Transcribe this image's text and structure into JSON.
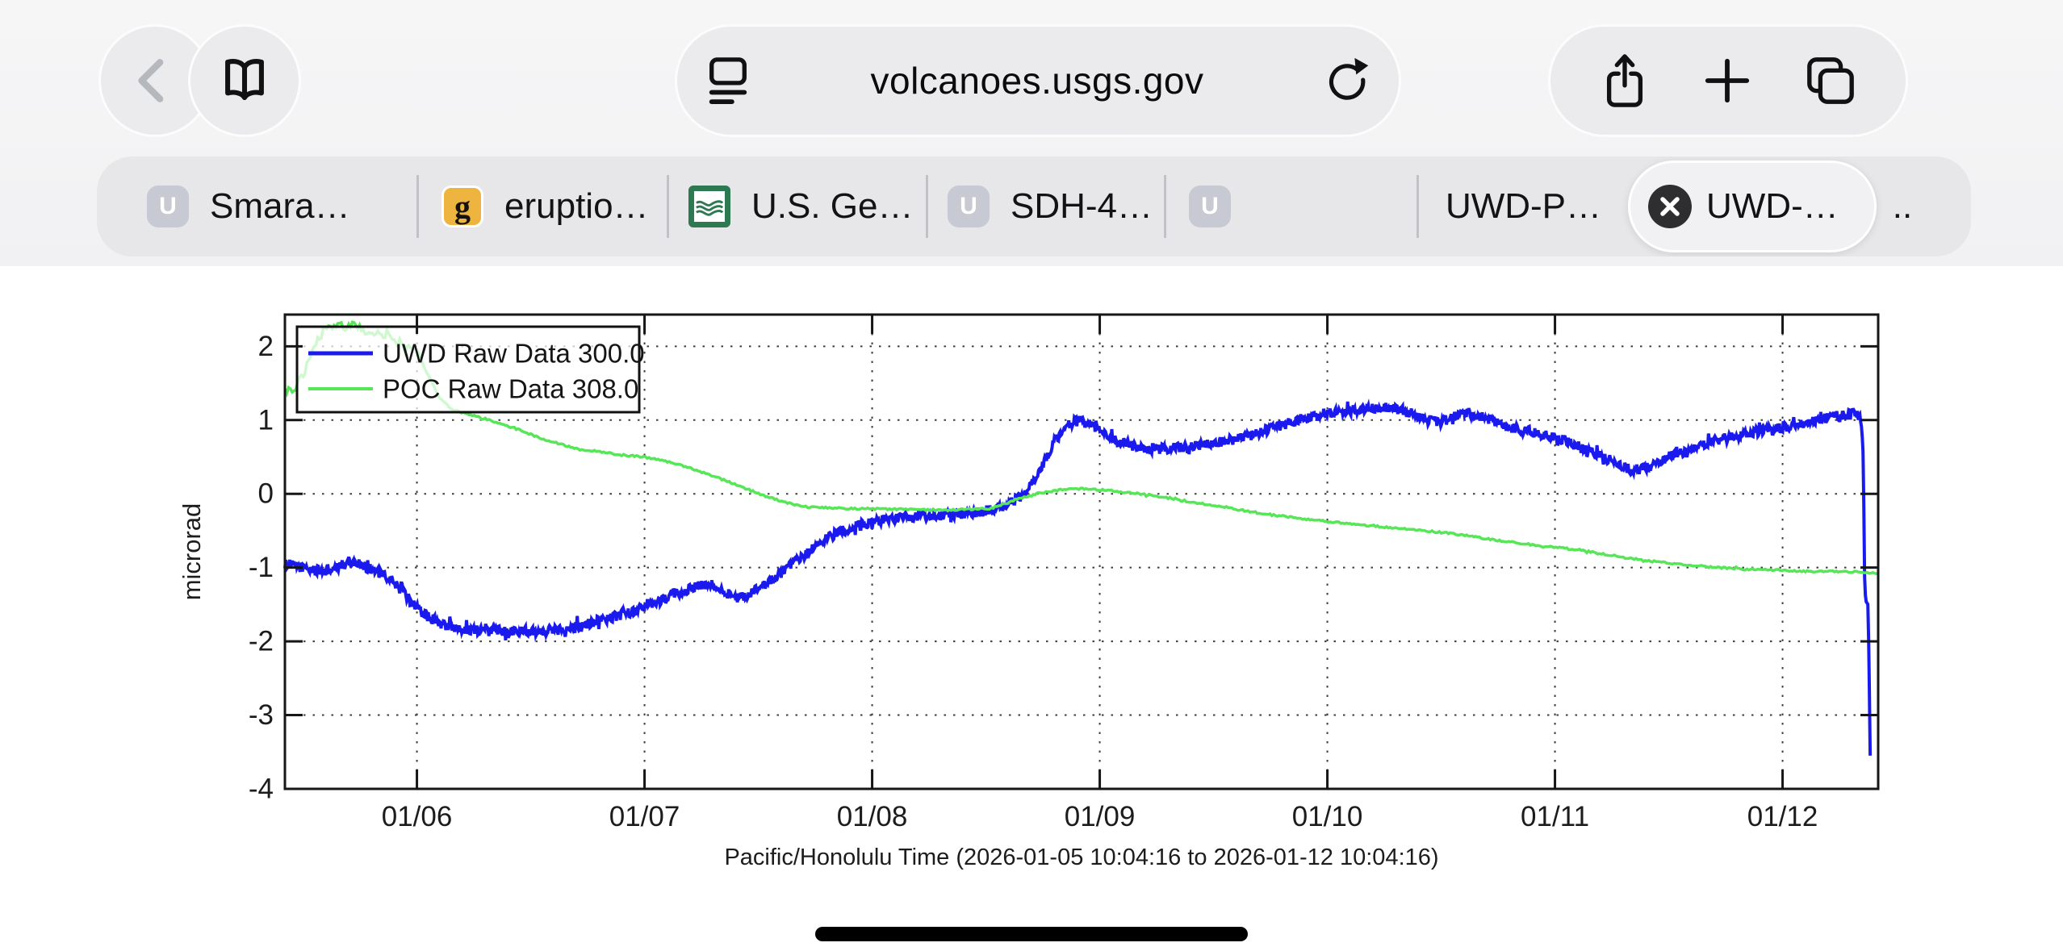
{
  "browser": {
    "url": "volcanoes.usgs.gov",
    "tabs": [
      {
        "label": "Smara…",
        "favicon_text": "U"
      },
      {
        "label": "eruptio…",
        "favicon_text": "g"
      },
      {
        "label": "U.S. Ge…",
        "favicon_text": ""
      },
      {
        "label": "SDH-4…",
        "favicon_text": "U"
      },
      {
        "label": "",
        "favicon_text": "U"
      },
      {
        "label": "UWD-P…",
        "favicon_text": ""
      },
      {
        "label": "UWD-…",
        "favicon_text": "",
        "active": true,
        "closable": true
      },
      {
        "label": "..",
        "favicon_text": ""
      }
    ]
  },
  "chart_data": {
    "type": "line",
    "title": "",
    "xlabel": "Pacific/Honolulu Time (2026-01-05 10:04:16 to 2026-01-12 10:04:16)",
    "ylabel": "microrad",
    "x_range_days": [
      0,
      7
    ],
    "x_tick_positions_days": [
      0.58,
      1.58,
      2.58,
      3.58,
      4.58,
      5.58,
      6.58
    ],
    "x_tick_labels": [
      "01/06",
      "01/07",
      "01/08",
      "01/09",
      "01/10",
      "01/11",
      "01/12"
    ],
    "ylim": [
      -4,
      2.43
    ],
    "y_ticks": [
      2,
      1,
      0,
      -1,
      -2,
      -3,
      -4
    ],
    "grid": true,
    "legend_position": "upper left",
    "axis_color": "#161616",
    "grid_color": "#3c3c3c",
    "series": [
      {
        "name": "UWD Raw Data 300.0",
        "color": "#1a1aee",
        "width": 4,
        "step": 0.0035,
        "noise": 0.07,
        "noise_cutoff": 6.93,
        "keypoints": [
          [
            0,
            -0.95
          ],
          [
            0.08,
            -1
          ],
          [
            0.15,
            -1.05
          ],
          [
            0.22,
            -1.02
          ],
          [
            0.28,
            -0.92
          ],
          [
            0.33,
            -0.95
          ],
          [
            0.4,
            -1.05
          ],
          [
            0.48,
            -1.2
          ],
          [
            0.55,
            -1.45
          ],
          [
            0.62,
            -1.65
          ],
          [
            0.7,
            -1.78
          ],
          [
            0.8,
            -1.84
          ],
          [
            0.9,
            -1.86
          ],
          [
            1,
            -1.85
          ],
          [
            1.1,
            -1.86
          ],
          [
            1.2,
            -1.84
          ],
          [
            1.3,
            -1.78
          ],
          [
            1.4,
            -1.7
          ],
          [
            1.5,
            -1.62
          ],
          [
            1.58,
            -1.55
          ],
          [
            1.65,
            -1.45
          ],
          [
            1.72,
            -1.35
          ],
          [
            1.8,
            -1.27
          ],
          [
            1.87,
            -1.22
          ],
          [
            1.93,
            -1.3
          ],
          [
            1.98,
            -1.43
          ],
          [
            2.05,
            -1.35
          ],
          [
            2.12,
            -1.22
          ],
          [
            2.2,
            -1.02
          ],
          [
            2.28,
            -0.85
          ],
          [
            2.35,
            -0.65
          ],
          [
            2.45,
            -0.5
          ],
          [
            2.55,
            -0.4
          ],
          [
            2.65,
            -0.34
          ],
          [
            2.8,
            -0.3
          ],
          [
            2.95,
            -0.28
          ],
          [
            3.05,
            -0.25
          ],
          [
            3.15,
            -0.18
          ],
          [
            3.25,
            -0.02
          ],
          [
            3.32,
            0.35
          ],
          [
            3.38,
            0.7
          ],
          [
            3.44,
            0.95
          ],
          [
            3.5,
            1
          ],
          [
            3.56,
            0.9
          ],
          [
            3.63,
            0.75
          ],
          [
            3.72,
            0.65
          ],
          [
            3.82,
            0.6
          ],
          [
            3.95,
            0.63
          ],
          [
            4.05,
            0.67
          ],
          [
            4.15,
            0.72
          ],
          [
            4.25,
            0.8
          ],
          [
            4.35,
            0.9
          ],
          [
            4.45,
            1
          ],
          [
            4.55,
            1.07
          ],
          [
            4.65,
            1.12
          ],
          [
            4.75,
            1.15
          ],
          [
            4.85,
            1.17
          ],
          [
            4.95,
            1.1
          ],
          [
            5.02,
            1
          ],
          [
            5.08,
            0.97
          ],
          [
            5.15,
            1.07
          ],
          [
            5.2,
            1.1
          ],
          [
            5.28,
            1.02
          ],
          [
            5.35,
            0.93
          ],
          [
            5.45,
            0.85
          ],
          [
            5.55,
            0.78
          ],
          [
            5.65,
            0.68
          ],
          [
            5.75,
            0.55
          ],
          [
            5.85,
            0.42
          ],
          [
            5.92,
            0.32
          ],
          [
            5.98,
            0.35
          ],
          [
            6.08,
            0.5
          ],
          [
            6.18,
            0.62
          ],
          [
            6.28,
            0.72
          ],
          [
            6.38,
            0.78
          ],
          [
            6.48,
            0.84
          ],
          [
            6.58,
            0.9
          ],
          [
            6.68,
            0.97
          ],
          [
            6.78,
            1.03
          ],
          [
            6.85,
            1.07
          ],
          [
            6.9,
            1.08
          ],
          [
            6.925,
            1.02
          ],
          [
            6.935,
            0.5
          ],
          [
            6.94,
            -1.1
          ],
          [
            6.945,
            -1.45
          ],
          [
            6.955,
            -1.5
          ],
          [
            6.96,
            -2.3
          ],
          [
            6.965,
            -3.55
          ]
        ]
      },
      {
        "name": "POC Raw Data 308.0",
        "color": "#57e657",
        "width": 3.5,
        "step": 0.008,
        "noise": 0.012,
        "noise_cutoff": 99,
        "noise_early": {
          "until": 0.55,
          "amp": 0.045
        },
        "keypoints": [
          [
            0,
            1.4
          ],
          [
            0.04,
            1.42
          ],
          [
            0.08,
            1.6
          ],
          [
            0.12,
            1.95
          ],
          [
            0.17,
            2.2
          ],
          [
            0.22,
            2.32
          ],
          [
            0.26,
            2.25
          ],
          [
            0.3,
            2.33
          ],
          [
            0.34,
            2.22
          ],
          [
            0.4,
            2.15
          ],
          [
            0.45,
            2.18
          ],
          [
            0.5,
            2.05
          ],
          [
            0.58,
            1.95
          ],
          [
            0.63,
            1.6
          ],
          [
            0.68,
            1.3
          ],
          [
            0.73,
            1.15
          ],
          [
            0.8,
            1.08
          ],
          [
            0.9,
            1
          ],
          [
            1,
            0.9
          ],
          [
            1.1,
            0.78
          ],
          [
            1.2,
            0.68
          ],
          [
            1.3,
            0.6
          ],
          [
            1.4,
            0.56
          ],
          [
            1.5,
            0.52
          ],
          [
            1.58,
            0.5
          ],
          [
            1.7,
            0.42
          ],
          [
            1.8,
            0.33
          ],
          [
            1.9,
            0.22
          ],
          [
            2,
            0.1
          ],
          [
            2.1,
            -0.02
          ],
          [
            2.2,
            -0.12
          ],
          [
            2.3,
            -0.18
          ],
          [
            2.5,
            -0.2
          ],
          [
            2.7,
            -0.21
          ],
          [
            2.9,
            -0.22
          ],
          [
            3.1,
            -0.2
          ],
          [
            3.2,
            -0.1
          ],
          [
            3.3,
            0
          ],
          [
            3.4,
            0.05
          ],
          [
            3.5,
            0.07
          ],
          [
            3.6,
            0.05
          ],
          [
            3.7,
            0.02
          ],
          [
            3.8,
            -0.02
          ],
          [
            3.9,
            -0.07
          ],
          [
            4,
            -0.12
          ],
          [
            4.1,
            -0.17
          ],
          [
            4.2,
            -0.22
          ],
          [
            4.3,
            -0.27
          ],
          [
            4.4,
            -0.31
          ],
          [
            4.5,
            -0.35
          ],
          [
            4.6,
            -0.38
          ],
          [
            4.7,
            -0.41
          ],
          [
            4.8,
            -0.44
          ],
          [
            4.9,
            -0.47
          ],
          [
            5,
            -0.5
          ],
          [
            5.1,
            -0.53
          ],
          [
            5.2,
            -0.57
          ],
          [
            5.3,
            -0.62
          ],
          [
            5.4,
            -0.66
          ],
          [
            5.5,
            -0.7
          ],
          [
            5.6,
            -0.73
          ],
          [
            5.7,
            -0.77
          ],
          [
            5.8,
            -0.82
          ],
          [
            5.9,
            -0.87
          ],
          [
            6,
            -0.91
          ],
          [
            6.1,
            -0.95
          ],
          [
            6.2,
            -0.98
          ],
          [
            6.3,
            -1
          ],
          [
            6.4,
            -1.02
          ],
          [
            6.5,
            -1.03
          ],
          [
            6.6,
            -1.04
          ],
          [
            6.7,
            -1.05
          ],
          [
            6.8,
            -1.05
          ],
          [
            6.9,
            -1.06
          ],
          [
            7,
            -1.08
          ]
        ]
      }
    ]
  }
}
